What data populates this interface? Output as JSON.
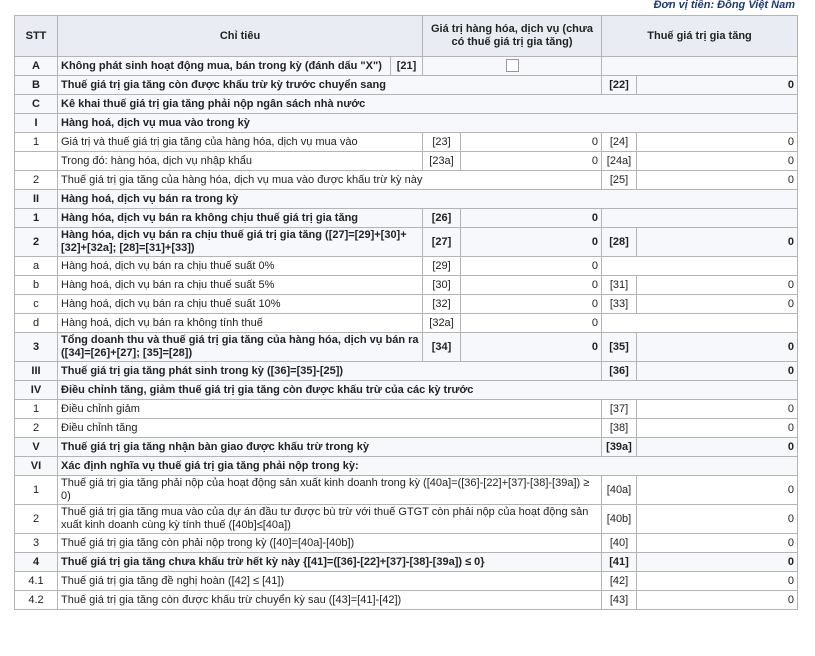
{
  "header": {
    "unit": "Đơn vị tiền: Đồng Việt Nam",
    "stt": "STT",
    "item": "Chỉ tiêu",
    "goods": "Giá trị hàng hóa, dịch vụ (chưa có thuế giá trị gia tăng)",
    "tax": "Thuế giá trị gia tăng"
  },
  "table": {
    "rows": [
      {
        "stt": "A",
        "label": "Không phát sinh hoạt động mua, bán trong kỳ (đánh dấu \"X\")",
        "code0": "[21]",
        "bold": true
      },
      {
        "stt": "B",
        "label": "Thuế giá trị gia tăng còn được khấu trừ kỳ trước chuyển sang",
        "code2": "[22]",
        "value2": 0,
        "bold": true
      },
      {
        "stt": "C",
        "label": "Kê khai thuế giá trị gia tăng phải nộp ngân sách nhà nước",
        "bold": true
      },
      {
        "stt": "I",
        "label": "Hàng hoá, dịch vụ mua vào trong kỳ",
        "bold": true
      },
      {
        "stt": "1",
        "label": "Giá trị và thuế giá trị gia tăng của hàng hóa, dịch vụ mua vào",
        "code1": "[23]",
        "value1": 0,
        "code2": "[24]",
        "value2": 0
      },
      {
        "label": "Trong đó: hàng hóa, dịch vụ nhập khẩu",
        "code1": "[23a]",
        "value1": 0,
        "code2": "[24a]",
        "value2": 0
      },
      {
        "stt": "2",
        "label": "Thuế giá trị gia tăng của hàng hóa, dịch vụ mua vào được khấu trừ kỳ này",
        "code2": "[25]",
        "value2": 0
      },
      {
        "stt": "II",
        "label": "Hàng hoá, dịch vụ bán ra trong kỳ",
        "bold": true
      },
      {
        "stt": "1",
        "label": "Hàng hóa, dịch vụ bán ra không chịu thuế giá trị gia tăng",
        "code1": "[26]",
        "value1": 0,
        "bold": true
      },
      {
        "stt": "2",
        "label": "Hàng hóa, dịch vụ bán ra chịu thuế giá trị gia tăng ([27]=[29]+[30]+[32]+[32a]; [28]=[31]+[33])",
        "code1": "[27]",
        "value1": 0,
        "code2": "[28]",
        "value2": 0,
        "bold": true
      },
      {
        "stt": "a",
        "label": "Hàng hoá, dịch vụ bán ra chịu thuế suất 0%",
        "code1": "[29]",
        "value1": 0
      },
      {
        "stt": "b",
        "label": "Hàng hoá, dịch vụ bán ra chịu thuế suất 5%",
        "code1": "[30]",
        "value1": 0,
        "code2": "[31]",
        "value2": 0
      },
      {
        "stt": "c",
        "label": "Hàng hoá, dịch vụ bán ra chịu thuế suất 10%",
        "code1": "[32]",
        "value1": 0,
        "code2": "[33]",
        "value2": 0
      },
      {
        "stt": "d",
        "label": "Hàng hoá, dịch vụ bán ra không tính thuế",
        "code1": "[32a]",
        "value1": 0
      },
      {
        "stt": "3",
        "label": "Tổng doanh thu và thuế giá trị gia tăng của hàng hóa, dịch vụ bán ra ([34]=[26]+[27]; [35]=[28])",
        "code1": "[34]",
        "value1": 0,
        "code2": "[35]",
        "value2": 0,
        "bold": true
      },
      {
        "stt": "III",
        "label": "Thuế giá trị gia tăng phát sinh trong kỳ ([36]=[35]-[25])",
        "code2": "[36]",
        "value2": 0,
        "bold": true
      },
      {
        "stt": "IV",
        "label": "Điều chỉnh tăng, giảm thuế giá trị gia tăng còn được khấu trừ của các kỳ trước",
        "bold": true
      },
      {
        "stt": "1",
        "label": "Điều chỉnh giảm",
        "code2": "[37]",
        "value2": 0
      },
      {
        "stt": "2",
        "label": "Điều chỉnh tăng",
        "code2": "[38]",
        "value2": 0
      },
      {
        "stt": "V",
        "label": "Thuế giá trị gia tăng nhận bàn giao được khấu trừ trong kỳ",
        "code2": "[39a]",
        "value2": 0,
        "bold": true
      },
      {
        "stt": "VI",
        "label": "Xác định nghĩa vụ thuế giá trị gia tăng phải nộp trong kỳ:",
        "bold": true
      },
      {
        "stt": "1",
        "label": "Thuế giá trị gia tăng phải nộp của hoạt động sản xuất kinh doanh trong kỳ ([40a]=([36]-[22]+[37]-[38]-[39a]) ≥ 0)",
        "code2": "[40a]",
        "value2": 0
      },
      {
        "stt": "2",
        "label": "Thuế giá trị gia tăng mua vào của dự án đầu tư được bù trừ với thuế GTGT còn phải nộp của hoạt động sản xuất kinh doanh cùng kỳ tính thuế ([40b]≤[40a])",
        "code2": "[40b]",
        "value2": 0
      },
      {
        "stt": "3",
        "label": "Thuế giá trị gia tăng còn phải nộp trong kỳ ([40]=[40a]-[40b])",
        "code2": "[40]",
        "value2": 0
      },
      {
        "stt": "4",
        "label": "Thuế giá trị gia tăng chưa khấu trừ hết kỳ này {[41]=([36]-[22]+[37]-[38]-[39a]) ≤ 0}",
        "code2": "[41]",
        "value2": 0,
        "bold": true
      },
      {
        "stt": "4.1",
        "label": "Thuế giá trị gia tăng đề nghị hoàn ([42] ≤ [41])",
        "code2": "[42]",
        "value2": 0
      },
      {
        "stt": "4.2",
        "label": "Thuế giá trị gia tăng còn được khấu trừ chuyển kỳ sau ([43]=[41]-[42])",
        "code2": "[43]",
        "value2": 0
      }
    ]
  }
}
